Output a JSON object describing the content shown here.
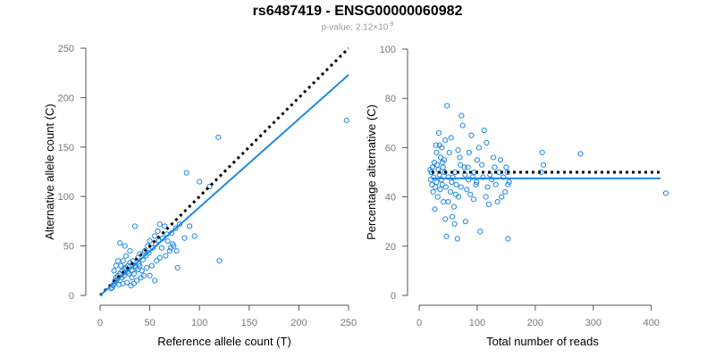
{
  "header": {
    "title": "rs6487419 - ENSG00000060982",
    "pvalue_prefix": "p-value: 2.12×10",
    "pvalue_exponent": "-9"
  },
  "colors": {
    "points": "#1e88e5",
    "fit": "#1e88e5",
    "reference": "#000000",
    "axis": "#555555"
  },
  "chart_data": [
    {
      "type": "scatter",
      "xlabel": "Reference allele count (T)",
      "ylabel": "Alternative allele count (C)",
      "xlim": [
        0,
        250
      ],
      "ylim": [
        0,
        250
      ],
      "xticks": [
        0,
        50,
        100,
        150,
        200,
        250
      ],
      "yticks": [
        0,
        50,
        100,
        150,
        200,
        250
      ],
      "grid": false,
      "fit_line": {
        "style": "solid",
        "from": [
          0,
          0
        ],
        "to": [
          250,
          223
        ]
      },
      "reference_line": {
        "style": "dotted",
        "from": [
          0,
          0
        ],
        "to": [
          250,
          250
        ]
      },
      "points": [
        [
          248,
          177
        ],
        [
          119,
          160
        ],
        [
          87,
          124
        ],
        [
          100,
          115
        ],
        [
          110,
          110
        ],
        [
          120,
          35
        ],
        [
          85,
          58
        ],
        [
          78,
          28
        ],
        [
          73,
          52
        ],
        [
          65,
          70
        ],
        [
          60,
          72
        ],
        [
          58,
          65
        ],
        [
          55,
          60
        ],
        [
          50,
          55
        ],
        [
          48,
          50
        ],
        [
          45,
          45
        ],
        [
          40,
          42
        ],
        [
          38,
          38
        ],
        [
          35,
          70
        ],
        [
          33,
          35
        ],
        [
          30,
          33
        ],
        [
          28,
          30
        ],
        [
          26,
          28
        ],
        [
          24,
          27
        ],
        [
          22,
          25
        ],
        [
          20,
          22
        ],
        [
          18,
          20
        ],
        [
          16,
          18
        ],
        [
          15,
          15
        ],
        [
          14,
          12
        ],
        [
          13,
          10
        ],
        [
          12,
          8
        ],
        [
          11,
          7
        ],
        [
          20,
          53
        ],
        [
          25,
          50
        ],
        [
          30,
          45
        ],
        [
          35,
          30
        ],
        [
          42,
          25
        ],
        [
          50,
          20
        ],
        [
          55,
          15
        ],
        [
          62,
          48
        ],
        [
          68,
          55
        ],
        [
          72,
          63
        ],
        [
          76,
          68
        ],
        [
          80,
          72
        ],
        [
          90,
          70
        ],
        [
          95,
          60
        ],
        [
          70,
          45
        ],
        [
          66,
          40
        ],
        [
          60,
          38
        ],
        [
          57,
          35
        ],
        [
          52,
          30
        ],
        [
          47,
          28
        ],
        [
          44,
          20
        ],
        [
          41,
          18
        ],
        [
          37,
          15
        ],
        [
          34,
          12
        ],
        [
          31,
          10
        ],
        [
          27,
          13
        ],
        [
          23,
          12
        ],
        [
          19,
          11
        ],
        [
          17,
          16
        ],
        [
          21,
          30
        ],
        [
          23,
          35
        ],
        [
          26,
          40
        ],
        [
          29,
          22
        ],
        [
          32,
          25
        ],
        [
          36,
          28
        ],
        [
          39,
          32
        ],
        [
          43,
          36
        ],
        [
          46,
          40
        ],
        [
          49,
          43
        ],
        [
          53,
          48
        ],
        [
          56,
          52
        ],
        [
          59,
          55
        ],
        [
          63,
          58
        ],
        [
          67,
          62
        ],
        [
          71,
          48
        ],
        [
          74,
          50
        ],
        [
          77,
          45
        ],
        [
          14,
          25
        ],
        [
          16,
          30
        ],
        [
          18,
          35
        ],
        [
          22,
          18
        ],
        [
          24,
          20
        ],
        [
          28,
          24
        ],
        [
          32,
          18
        ],
        [
          34,
          22
        ],
        [
          38,
          26
        ],
        [
          40,
          30
        ]
      ]
    },
    {
      "type": "scatter",
      "xlabel": "Total number of reads",
      "ylabel": "Percentage alternative (C)",
      "xlim": [
        0,
        425
      ],
      "ylim": [
        0,
        100
      ],
      "xticks": [
        0,
        100,
        200,
        300,
        400
      ],
      "yticks": [
        0,
        20,
        40,
        60,
        80,
        100
      ],
      "grid": false,
      "fit_line": {
        "style": "solid",
        "y": 47.5
      },
      "reference_line": {
        "style": "dotted",
        "y": 50
      },
      "points": [
        [
          425,
          41.5
        ],
        [
          278,
          57.5
        ],
        [
          212,
          58
        ],
        [
          214,
          53
        ],
        [
          210,
          50
        ],
        [
          153,
          23
        ],
        [
          153,
          45
        ],
        [
          152,
          50
        ],
        [
          150,
          52
        ],
        [
          148,
          42
        ],
        [
          145,
          48
        ],
        [
          142,
          40
        ],
        [
          140,
          55
        ],
        [
          135,
          38
        ],
        [
          132,
          45
        ],
        [
          130,
          52
        ],
        [
          128,
          56
        ],
        [
          125,
          47
        ],
        [
          120,
          37
        ],
        [
          118,
          44
        ],
        [
          115,
          40
        ],
        [
          110,
          48
        ],
        [
          108,
          53
        ],
        [
          105,
          26
        ],
        [
          103,
          60
        ],
        [
          100,
          55
        ],
        [
          98,
          45
        ],
        [
          95,
          50
        ],
        [
          92,
          48
        ],
        [
          90,
          65
        ],
        [
          88,
          41
        ],
        [
          85,
          47
        ],
        [
          82,
          43
        ],
        [
          80,
          30
        ],
        [
          78,
          52
        ],
        [
          75,
          69
        ],
        [
          73,
          73
        ],
        [
          70,
          56
        ],
        [
          68,
          40
        ],
        [
          66,
          23
        ],
        [
          64,
          45
        ],
        [
          62,
          50
        ],
        [
          60,
          36
        ],
        [
          58,
          48
        ],
        [
          56,
          46
        ],
        [
          54,
          42
        ],
        [
          52,
          58
        ],
        [
          50,
          48
        ],
        [
          48,
          77
        ],
        [
          47,
          24
        ],
        [
          46,
          44
        ],
        [
          45,
          63
        ],
        [
          44,
          50
        ],
        [
          43,
          55
        ],
        [
          42,
          38
        ],
        [
          41,
          52
        ],
        [
          40,
          45
        ],
        [
          39,
          60
        ],
        [
          38,
          47
        ],
        [
          37,
          56
        ],
        [
          36,
          43
        ],
        [
          35,
          49
        ],
        [
          34,
          66
        ],
        [
          33,
          51
        ],
        [
          32,
          40
        ],
        [
          31,
          53
        ],
        [
          30,
          46
        ],
        [
          29,
          61
        ],
        [
          28,
          44
        ],
        [
          27,
          35
        ],
        [
          26,
          54
        ],
        [
          25,
          48
        ],
        [
          24,
          42
        ],
        [
          23,
          52
        ],
        [
          22,
          45
        ],
        [
          21,
          50
        ],
        [
          20,
          47
        ],
        [
          19,
          51
        ],
        [
          57,
          32
        ],
        [
          61,
          29
        ],
        [
          67,
          59
        ],
        [
          72,
          44
        ],
        [
          86,
          58
        ],
        [
          94,
          39
        ],
        [
          112,
          67
        ],
        [
          116,
          62
        ],
        [
          122,
          49
        ],
        [
          138,
          50
        ],
        [
          155,
          46
        ],
        [
          30,
          58
        ],
        [
          55,
          64
        ],
        [
          50,
          38
        ],
        [
          45,
          31
        ],
        [
          40,
          54
        ],
        [
          35,
          61
        ],
        [
          63,
          41
        ],
        [
          71,
          53
        ],
        [
          79,
          49
        ],
        [
          84,
          52
        ],
        [
          99,
          46
        ]
      ]
    }
  ]
}
